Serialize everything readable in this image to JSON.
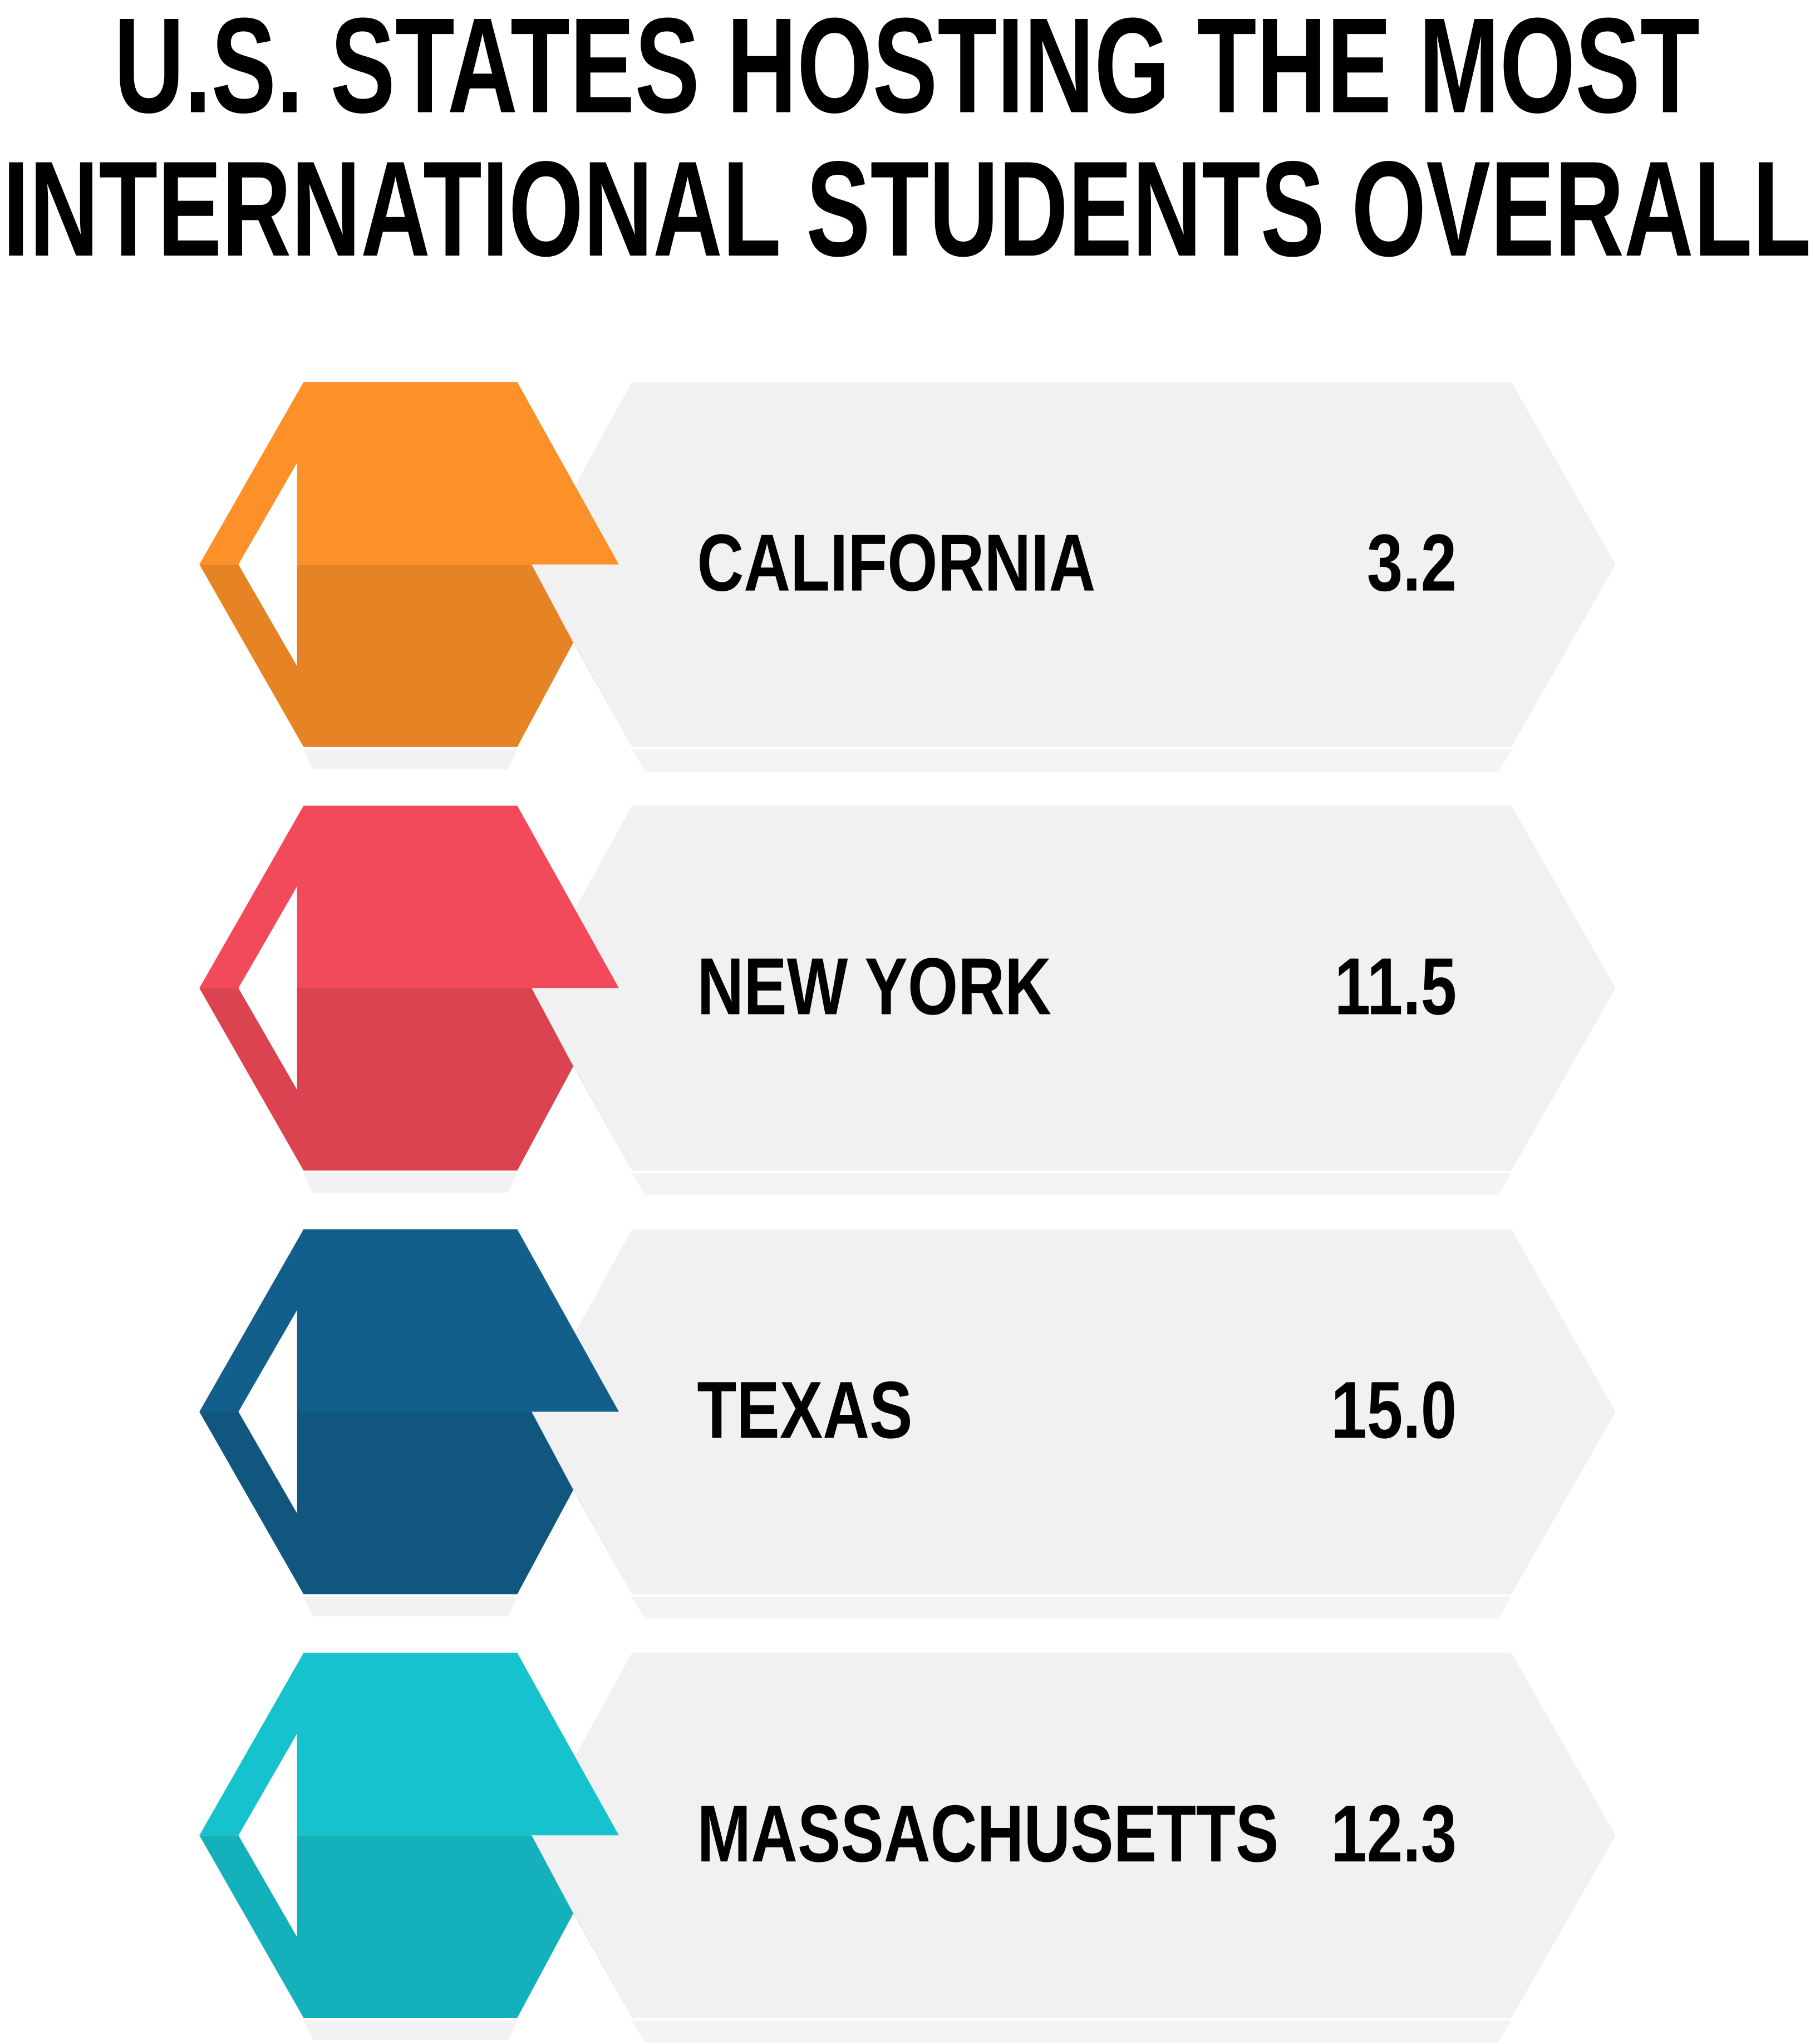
{
  "chart_data": {
    "type": "ribbon-list",
    "title": [
      "U.S. STATES HOSTING THE MOST",
      "INTERNATIONAL STUDENTS OVERALL"
    ],
    "categories": [
      "CALIFORNIA",
      "NEW YORK",
      "TEXAS",
      "MASSACHUSETTS"
    ],
    "values": [
      3.2,
      11.5,
      15.0,
      12.3
    ],
    "value_labels": [
      "3.2",
      "11.5",
      "15.0",
      "12.3"
    ],
    "colors": [
      "#fd9129",
      "#f24a5a",
      "#125f8c",
      "#17c2cf"
    ]
  }
}
